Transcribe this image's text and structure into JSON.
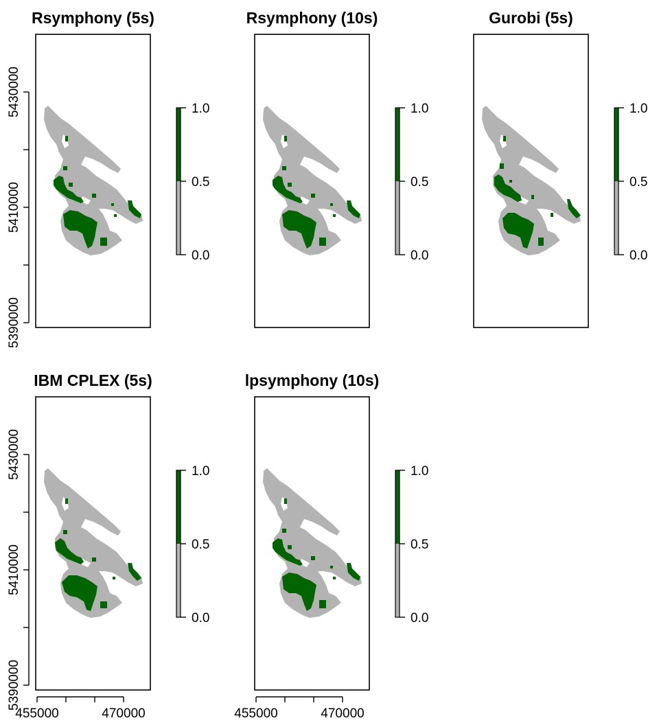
{
  "chart_data": [
    {
      "type": "heatmap",
      "title": "Rsymphony (5s)",
      "yticks": [
        "5390000",
        "5410000",
        "5430000"
      ],
      "xticks": [],
      "legend_ticks": [
        "0.0",
        "0.5",
        "1.0"
      ],
      "legend_range": [
        0,
        1
      ],
      "legend_placement": "right",
      "colors": {
        "not_selected": "#b3b3b3",
        "selected": "#006400"
      },
      "selection_pattern": "a"
    },
    {
      "type": "heatmap",
      "title": "Rsymphony (10s)",
      "yticks": [],
      "xticks": [],
      "legend_ticks": [
        "0.0",
        "0.5",
        "1.0"
      ],
      "legend_range": [
        0,
        1
      ],
      "legend_placement": "right",
      "colors": {
        "not_selected": "#b3b3b3",
        "selected": "#006400"
      },
      "selection_pattern": "a"
    },
    {
      "type": "heatmap",
      "title": "Gurobi (5s)",
      "yticks": [],
      "xticks": [],
      "legend_ticks": [
        "0.0",
        "0.5",
        "1.0"
      ],
      "legend_range": [
        0,
        1
      ],
      "legend_placement": "right",
      "colors": {
        "not_selected": "#b3b3b3",
        "selected": "#006400"
      },
      "selection_pattern": "b"
    },
    {
      "type": "heatmap",
      "title": "IBM CPLEX (5s)",
      "yticks": [
        "5390000",
        "5410000",
        "5430000"
      ],
      "xticks": [
        "455000",
        "470000"
      ],
      "legend_ticks": [
        "0.0",
        "0.5",
        "1.0"
      ],
      "legend_range": [
        0,
        1
      ],
      "legend_placement": "right",
      "colors": {
        "not_selected": "#b3b3b3",
        "selected": "#006400"
      },
      "selection_pattern": "c"
    },
    {
      "type": "heatmap",
      "title": "lpsymphony (10s)",
      "yticks": [],
      "xticks": [
        "455000",
        "470000"
      ],
      "legend_ticks": [
        "0.0",
        "0.5",
        "1.0"
      ],
      "legend_range": [
        0,
        1
      ],
      "legend_placement": "right",
      "colors": {
        "not_selected": "#b3b3b3",
        "selected": "#006400"
      },
      "selection_pattern": "a"
    }
  ]
}
